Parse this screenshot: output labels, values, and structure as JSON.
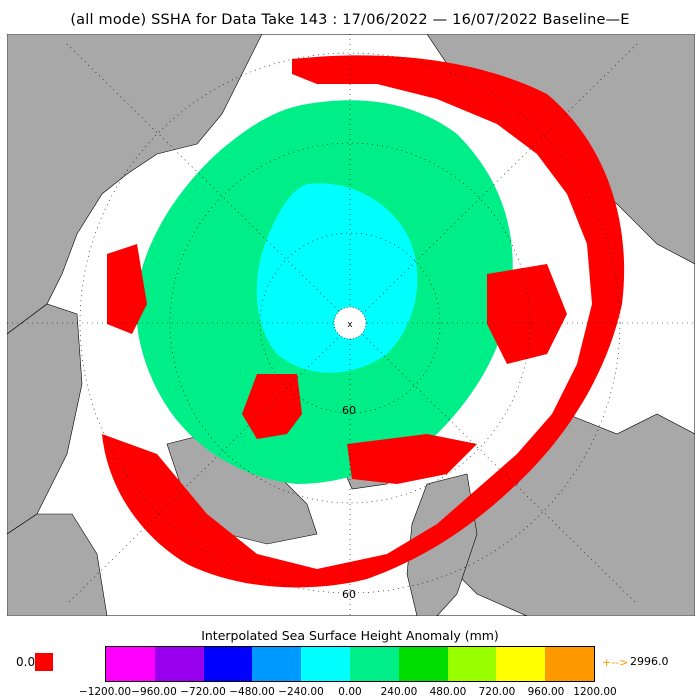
{
  "title": "(all mode) SSHA for Data Take 143 : 17/06/2022 — 16/07/2022 Baseline—E",
  "map": {
    "graticule_labels": [
      "60",
      "60"
    ],
    "center_marker": "x"
  },
  "colorbar": {
    "title": "Interpolated Sea Surface Height Anomaly (mm)",
    "colors": [
      "#ff00ff",
      "#9900ee",
      "#0000ff",
      "#0099ff",
      "#00ffff",
      "#00ee88",
      "#00dd00",
      "#99ff00",
      "#ffff00",
      "#ff9900"
    ],
    "ticks": [
      "−1200.00",
      "−960.00",
      "−720.00",
      "−480.00",
      "−240.00",
      "0.00",
      "240.00",
      "480.00",
      "720.00",
      "960.00",
      "1200.00"
    ],
    "missing_label": "0.0",
    "missing_color": "#ff0000",
    "overflow_arrow": "+-->",
    "overflow_value": "2996.0"
  },
  "colors": {
    "land": "#a8a8a8",
    "ocean_background": "#ffffff",
    "anomaly_high": "#ff0000",
    "anomaly_mid": "#00ee88",
    "anomaly_low": "#00ffff"
  }
}
